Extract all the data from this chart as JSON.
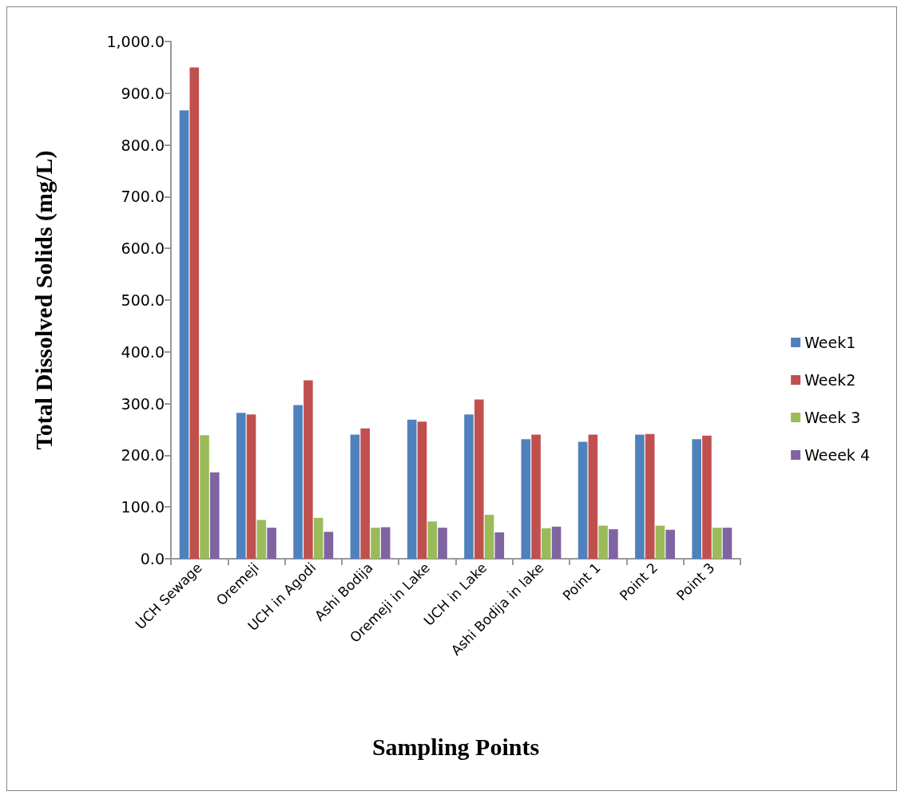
{
  "chart_data": {
    "type": "bar",
    "xlabel": "Sampling Points",
    "ylabel": "Total Dissolved Solids (mg/L)",
    "categories": [
      "UCH Sewage",
      "Oremeji",
      "UCH in Agodi",
      "Ashi Bodija",
      "Oremeji in Lake",
      "UCH in Lake",
      "Ashi Bodija in lake",
      "Point 1",
      "Point 2",
      "Point 3"
    ],
    "series": [
      {
        "name": "Week1",
        "color": "#4f81bd",
        "values": [
          867,
          282,
          297,
          240,
          269,
          279,
          231,
          226,
          240,
          231
        ]
      },
      {
        "name": "Week2",
        "color": "#c0504d",
        "values": [
          950,
          279,
          345,
          252,
          265,
          308,
          240,
          240,
          241,
          238
        ]
      },
      {
        "name": "Week 3",
        "color": "#9bbb59",
        "values": [
          239,
          75,
          79,
          60,
          72,
          85,
          59,
          64,
          64,
          60
        ]
      },
      {
        "name": "Weeek 4",
        "color": "#8064a2",
        "values": [
          167,
          60,
          52,
          61,
          60,
          51,
          62,
          57,
          56,
          60
        ]
      }
    ],
    "ylim": [
      0,
      1000
    ],
    "yticks": [
      {
        "value": 0,
        "label": "0.0"
      },
      {
        "value": 100,
        "label": "100.0"
      },
      {
        "value": 200,
        "label": "200.0"
      },
      {
        "value": 300,
        "label": "300.0"
      },
      {
        "value": 400,
        "label": "400.0"
      },
      {
        "value": 500,
        "label": "500.0"
      },
      {
        "value": 600,
        "label": "600.0"
      },
      {
        "value": 700,
        "label": "700.0"
      },
      {
        "value": 800,
        "label": "800.0"
      },
      {
        "value": 900,
        "label": "900.0"
      },
      {
        "value": 1000,
        "label": "1,000.0"
      }
    ],
    "grid": false,
    "legend": "right"
  }
}
